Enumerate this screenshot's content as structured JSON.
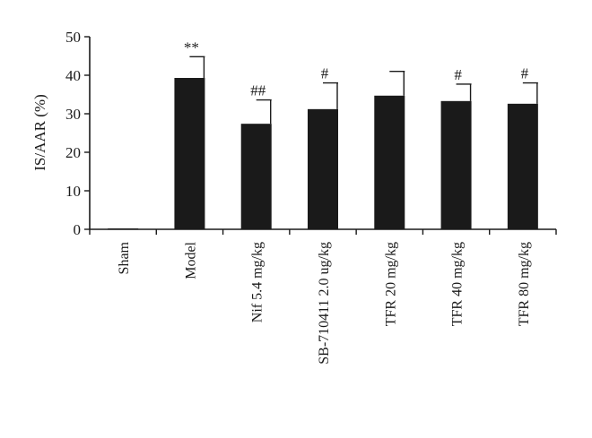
{
  "chart_data": {
    "type": "bar",
    "title": "",
    "xlabel": "",
    "ylabel": "IS/AAR (%)",
    "ylim": [
      0,
      50
    ],
    "yticks": [
      0,
      10,
      20,
      30,
      40,
      50
    ],
    "grid": false,
    "categories": [
      "Sham",
      "Model",
      "Nif 5.4 mg/kg",
      "SB-710411 2.0 ug/kg",
      "TFR 20 mg/kg",
      "TFR 40 mg/kg",
      "TFR 80 mg/kg"
    ],
    "values": [
      0.2,
      39.3,
      27.4,
      31.2,
      34.7,
      33.3,
      32.6
    ],
    "errors": [
      0,
      5.5,
      6.2,
      6.8,
      6.3,
      4.4,
      5.4
    ],
    "annotations": [
      "",
      "**",
      "##",
      "#",
      "",
      "#",
      "#"
    ],
    "bar_color": "#1a1a1a"
  }
}
